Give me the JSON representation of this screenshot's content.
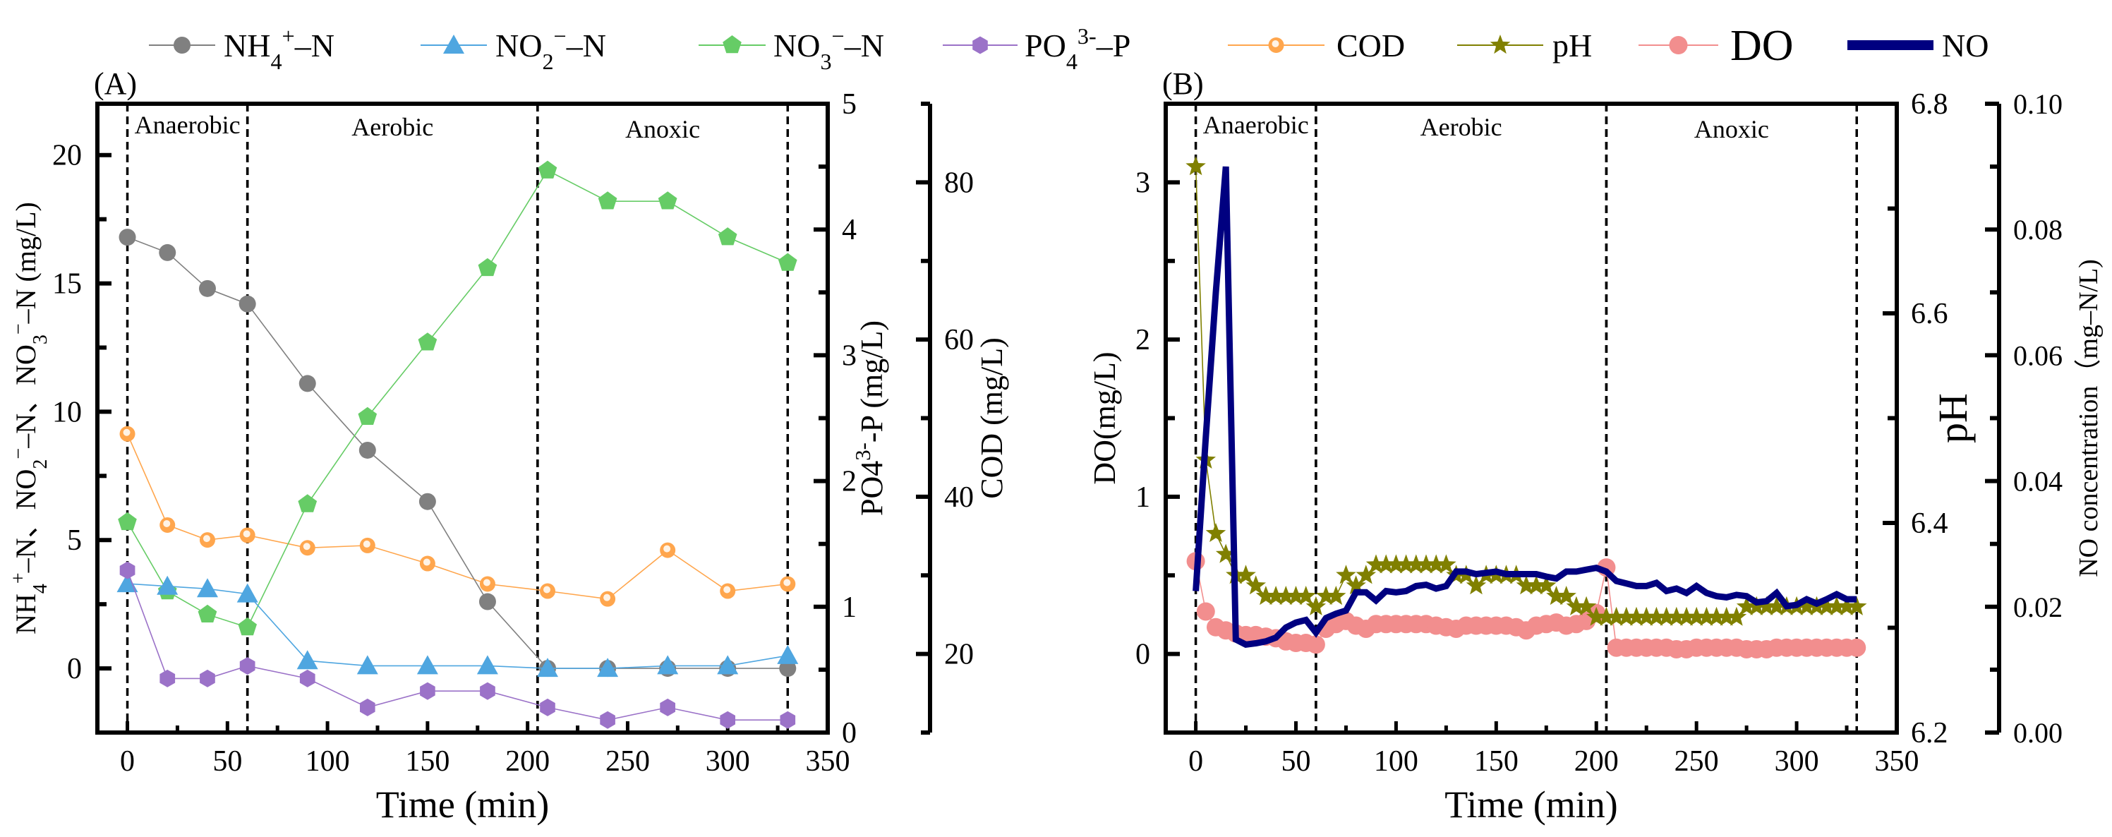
{
  "legend": {
    "items": [
      {
        "key": "nh4",
        "parts": [
          {
            "t": "NH"
          },
          {
            "t": "4",
            "s": "sub"
          },
          {
            "t": "+",
            "s": "super"
          },
          {
            "t": "–N"
          }
        ],
        "color": "#808080",
        "marker": "circle"
      },
      {
        "key": "no2",
        "parts": [
          {
            "t": "NO"
          },
          {
            "t": "2",
            "s": "sub"
          },
          {
            "t": "−",
            "s": "super"
          },
          {
            "t": "–N"
          }
        ],
        "color": "#4FA6E0",
        "marker": "triangle"
      },
      {
        "key": "no3",
        "parts": [
          {
            "t": "NO"
          },
          {
            "t": "3",
            "s": "sub"
          },
          {
            "t": "−",
            "s": "super"
          },
          {
            "t": "–N"
          }
        ],
        "color": "#66CC66",
        "marker": "pentagon"
      },
      {
        "key": "po4",
        "parts": [
          {
            "t": "PO"
          },
          {
            "t": "4",
            "s": "sub"
          },
          {
            "t": "3-",
            "s": "super"
          },
          {
            "t": "–P"
          }
        ],
        "color": "#9B72C8",
        "marker": "hexagon"
      },
      {
        "key": "cod",
        "parts": [
          {
            "t": "COD"
          }
        ],
        "color": "#FFA64D",
        "marker": "ball"
      },
      {
        "key": "ph",
        "parts": [
          {
            "t": "pH"
          }
        ],
        "color": "#808000",
        "marker": "star"
      },
      {
        "key": "do",
        "parts": [
          {
            "t": "DO"
          }
        ],
        "color": "#F28E8E",
        "marker": "dot"
      },
      {
        "key": "no",
        "parts": [
          {
            "t": "NO"
          }
        ],
        "color": "#000080",
        "marker": "thickline"
      }
    ]
  },
  "chart_data": [
    {
      "panel_label": "(A)",
      "type": "line",
      "x": {
        "label": "Time (min)",
        "range": [
          -15,
          350
        ],
        "ticks": [
          0,
          50,
          100,
          150,
          200,
          250,
          300,
          350
        ]
      },
      "y_axes": [
        {
          "id": "left",
          "position": "left",
          "range": [
            -2.5,
            22
          ],
          "ticks": [
            0,
            5,
            10,
            15,
            20
          ],
          "label_parts": [
            {
              "t": "NH"
            },
            {
              "t": "4",
              "s": "sub"
            },
            {
              "t": "+",
              "s": "super"
            },
            {
              "t": "–N、NO"
            },
            {
              "t": "2",
              "s": "sub"
            },
            {
              "t": "−",
              "s": "super"
            },
            {
              "t": "–N、NO"
            },
            {
              "t": "3",
              "s": "sub"
            },
            {
              "t": "−",
              "s": "super"
            },
            {
              "t": "–N (mg/L)"
            }
          ]
        },
        {
          "id": "po4",
          "position": "right",
          "range": [
            0,
            5
          ],
          "ticks": [
            0,
            1,
            2,
            3,
            4,
            5
          ],
          "label_parts": [
            {
              "t": "PO4"
            },
            {
              "t": "3-",
              "s": "super"
            },
            {
              "t": "-P (mg/L)"
            }
          ]
        },
        {
          "id": "cod",
          "position": "right-offset",
          "range": [
            10,
            90
          ],
          "ticks": [
            20,
            40,
            60,
            80
          ],
          "label_parts": [
            {
              "t": "COD (mg/L)"
            }
          ]
        }
      ],
      "phases": [
        {
          "label": "Anaerobic",
          "start": 0,
          "end": 60
        },
        {
          "label": "Aerobic",
          "start": 60,
          "end": 205
        },
        {
          "label": "Anoxic",
          "start": 205,
          "end": 330
        }
      ],
      "x_values": [
        0,
        20,
        40,
        60,
        90,
        120,
        150,
        180,
        210,
        240,
        270,
        300,
        330
      ],
      "series": [
        {
          "key": "nh4",
          "name": "NH4+-N",
          "axis": "left",
          "values": [
            16.8,
            16.2,
            14.8,
            14.2,
            11.1,
            8.5,
            6.5,
            2.6,
            0,
            0,
            0,
            0,
            0
          ]
        },
        {
          "key": "no2",
          "name": "NO2--N",
          "axis": "left",
          "values": [
            3.3,
            3.2,
            3.1,
            2.9,
            0.3,
            0.1,
            0.1,
            0.1,
            0,
            0,
            0.1,
            0.1,
            0.5
          ]
        },
        {
          "key": "no3",
          "name": "NO3--N",
          "axis": "left",
          "values": [
            5.7,
            3.0,
            2.1,
            1.6,
            6.4,
            9.8,
            12.7,
            15.6,
            19.4,
            18.2,
            18.2,
            16.8,
            15.8
          ]
        },
        {
          "key": "po4",
          "name": "PO43--P",
          "axis": "po4",
          "values": [
            1.29,
            0.43,
            0.43,
            0.53,
            0.43,
            0.2,
            0.33,
            0.33,
            0.2,
            0.1,
            0.2,
            0.1,
            0.1
          ]
        },
        {
          "key": "cod",
          "name": "COD",
          "axis": "cod",
          "values": [
            48.0,
            36.4,
            34.5,
            35.1,
            33.5,
            33.8,
            31.5,
            28.9,
            28.0,
            27.0,
            33.2,
            28.0,
            28.9
          ]
        }
      ]
    },
    {
      "panel_label": "(B)",
      "type": "line",
      "x": {
        "label": "Time (min)",
        "range": [
          -15,
          350
        ],
        "ticks": [
          0,
          50,
          100,
          150,
          200,
          250,
          300,
          350
        ]
      },
      "y_axes": [
        {
          "id": "do",
          "position": "left",
          "range": [
            -0.5,
            3.5
          ],
          "ticks": [
            0,
            1,
            2,
            3
          ],
          "label_parts": [
            {
              "t": "DO(mg/L)"
            }
          ]
        },
        {
          "id": "ph",
          "position": "right",
          "range": [
            6.2,
            6.8
          ],
          "ticks": [
            "6.2",
            "6.4",
            "6.6",
            "6.8"
          ],
          "label_parts": [
            {
              "t": "pH"
            }
          ]
        },
        {
          "id": "no",
          "position": "right-offset",
          "range": [
            0,
            0.1
          ],
          "ticks": [
            "0.00",
            "0.02",
            "0.04",
            "0.06",
            "0.08",
            "0.10"
          ],
          "label_parts": [
            {
              "t": "NO concentration（mg–N/L)"
            }
          ]
        }
      ],
      "phases": [
        {
          "label": "Anaerobic",
          "start": 0,
          "end": 60
        },
        {
          "label": "Aerobic",
          "start": 60,
          "end": 205
        },
        {
          "label": "Anoxic",
          "start": 205,
          "end": 330
        }
      ],
      "x_start": 0,
      "x_step": 5,
      "series": [
        {
          "key": "do",
          "name": "DO",
          "axis": "do",
          "values": [
            0.59,
            0.27,
            0.17,
            0.15,
            0.13,
            0.12,
            0.12,
            0.11,
            0.1,
            0.08,
            0.07,
            0.07,
            0.06,
            0.16,
            0.19,
            0.21,
            0.18,
            0.16,
            0.19,
            0.19,
            0.19,
            0.19,
            0.19,
            0.19,
            0.18,
            0.17,
            0.16,
            0.18,
            0.18,
            0.18,
            0.18,
            0.18,
            0.17,
            0.15,
            0.18,
            0.19,
            0.2,
            0.18,
            0.19,
            0.21,
            0.26,
            0.55,
            0.04,
            0.04,
            0.04,
            0.04,
            0.04,
            0.04,
            0.03,
            0.03,
            0.04,
            0.04,
            0.04,
            0.04,
            0.04,
            0.03,
            0.03,
            0.03,
            0.04,
            0.04,
            0.04,
            0.04,
            0.04,
            0.04,
            0.04,
            0.04,
            0.04
          ]
        },
        {
          "key": "ph",
          "name": "pH",
          "axis": "ph",
          "values": [
            6.74,
            6.46,
            6.39,
            6.37,
            6.35,
            6.35,
            6.34,
            6.33,
            6.33,
            6.33,
            6.33,
            6.33,
            6.32,
            6.33,
            6.33,
            6.35,
            6.34,
            6.35,
            6.36,
            6.36,
            6.36,
            6.36,
            6.36,
            6.36,
            6.36,
            6.36,
            6.35,
            6.35,
            6.34,
            6.35,
            6.35,
            6.35,
            6.35,
            6.34,
            6.34,
            6.34,
            6.33,
            6.33,
            6.32,
            6.32,
            6.31,
            6.31,
            6.31,
            6.31,
            6.31,
            6.31,
            6.31,
            6.31,
            6.31,
            6.31,
            6.31,
            6.31,
            6.31,
            6.31,
            6.31,
            6.32,
            6.32,
            6.32,
            6.32,
            6.32,
            6.32,
            6.32,
            6.32,
            6.32,
            6.32,
            6.32,
            6.32
          ]
        },
        {
          "key": "no",
          "name": "NO",
          "axis": "no",
          "values": [
            0.0225,
            0.047,
            0.07,
            0.09,
            0.0148,
            0.014,
            0.0142,
            0.0145,
            0.0151,
            0.0167,
            0.0175,
            0.0179,
            0.0159,
            0.0182,
            0.0189,
            0.0194,
            0.0223,
            0.0223,
            0.021,
            0.0225,
            0.0223,
            0.0225,
            0.0233,
            0.0235,
            0.0229,
            0.0233,
            0.0256,
            0.0256,
            0.0252,
            0.0254,
            0.0256,
            0.0252,
            0.0252,
            0.0252,
            0.0252,
            0.0248,
            0.0245,
            0.0256,
            0.0256,
            0.0259,
            0.0262,
            0.0256,
            0.0241,
            0.0237,
            0.0233,
            0.0233,
            0.0238,
            0.0225,
            0.0229,
            0.0222,
            0.0233,
            0.0222,
            0.0217,
            0.0215,
            0.0219,
            0.0217,
            0.0207,
            0.0209,
            0.0222,
            0.0201,
            0.0203,
            0.0212,
            0.0205,
            0.0212,
            0.022,
            0.0212,
            0.0212
          ]
        }
      ]
    }
  ]
}
